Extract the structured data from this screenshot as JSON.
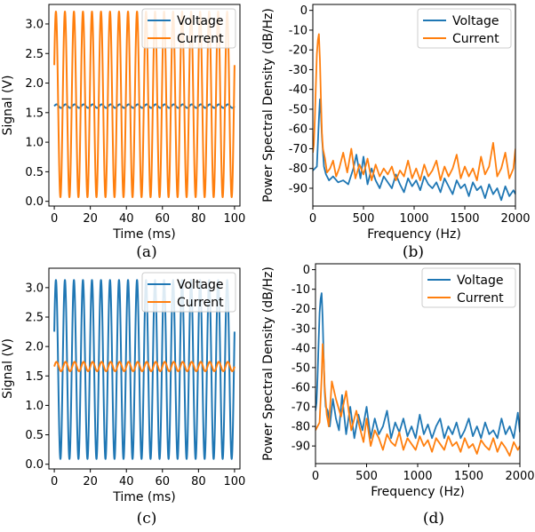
{
  "colors": {
    "voltage": "#1f77b4",
    "current": "#ff7f0e"
  },
  "chart_data": [
    {
      "id": "a",
      "type": "line",
      "caption": "(a)",
      "xlabel": "Time (ms)",
      "ylabel": "Signal (V)",
      "xlim": [
        -3,
        103
      ],
      "ylim": [
        -0.08,
        3.33
      ],
      "xticks": [
        0,
        20,
        40,
        60,
        80,
        100
      ],
      "xtick_labels": [
        "0",
        "20",
        "40",
        "60",
        "80",
        "100"
      ],
      "yticks": [
        0.0,
        0.5,
        1.0,
        1.5,
        2.0,
        2.5,
        3.0
      ],
      "ytick_labels": [
        "0.0",
        "0.5",
        "1.0",
        "1.5",
        "2.0",
        "2.5",
        "3.0"
      ],
      "legend_position": "top-right",
      "series": [
        {
          "name": "Voltage",
          "color_key": "voltage",
          "kind": "sine",
          "offset": 1.61,
          "amplitude": 0.03,
          "frequency_hz": 200,
          "phase_deg": 0
        },
        {
          "name": "Current",
          "color_key": "current",
          "kind": "sine",
          "offset": 1.64,
          "amplitude": 1.57,
          "frequency_hz": 200,
          "phase_deg": 25
        }
      ]
    },
    {
      "id": "b",
      "type": "line",
      "caption": "(b)",
      "xlabel": "Frequency (Hz)",
      "ylabel": "Power Spectral Density (dB/Hz)",
      "xlim": [
        0,
        2000
      ],
      "ylim": [
        -99,
        3
      ],
      "xticks": [
        0,
        500,
        1000,
        1500,
        2000
      ],
      "xtick_labels": [
        "0",
        "500",
        "1000",
        "1500",
        "2000"
      ],
      "yticks": [
        0,
        -10,
        -20,
        -30,
        -40,
        -50,
        -60,
        -70,
        -80,
        -90
      ],
      "ytick_labels": [
        "0",
        "-10",
        "-20",
        "-30",
        "-40",
        "-50",
        "-60",
        "-70",
        "-80",
        "-90"
      ],
      "legend_position": "top-right",
      "series": [
        {
          "name": "Voltage",
          "color_key": "voltage",
          "x": [
            0,
            20,
            40,
            60,
            70,
            80,
            90,
            110,
            130,
            160,
            200,
            250,
            300,
            350,
            400,
            430,
            470,
            500,
            540,
            580,
            620,
            660,
            700,
            740,
            780,
            820,
            860,
            900,
            940,
            980,
            1020,
            1060,
            1100,
            1140,
            1180,
            1220,
            1260,
            1300,
            1340,
            1380,
            1420,
            1460,
            1500,
            1540,
            1580,
            1620,
            1660,
            1700,
            1740,
            1780,
            1820,
            1860,
            1900,
            1940,
            1980,
            2000
          ],
          "y": [
            -81,
            -80,
            -79,
            -55,
            -45,
            -52,
            -64,
            -79,
            -83,
            -86,
            -84,
            -87,
            -86,
            -88,
            -80,
            -73,
            -85,
            -74,
            -88,
            -80,
            -86,
            -90,
            -84,
            -87,
            -90,
            -83,
            -88,
            -92,
            -85,
            -89,
            -86,
            -91,
            -84,
            -88,
            -90,
            -87,
            -92,
            -85,
            -89,
            -93,
            -86,
            -90,
            -88,
            -94,
            -87,
            -91,
            -89,
            -95,
            -88,
            -93,
            -90,
            -96,
            -89,
            -94,
            -91,
            -93
          ]
        },
        {
          "name": "Current",
          "color_key": "current",
          "x": [
            0,
            10,
            20,
            30,
            40,
            50,
            60,
            70,
            80,
            90,
            100,
            120,
            140,
            170,
            200,
            230,
            260,
            300,
            340,
            380,
            420,
            460,
            500,
            540,
            580,
            620,
            660,
            700,
            740,
            780,
            820,
            860,
            900,
            940,
            980,
            1020,
            1060,
            1100,
            1140,
            1180,
            1220,
            1260,
            1300,
            1340,
            1380,
            1420,
            1460,
            1500,
            1540,
            1580,
            1620,
            1660,
            1700,
            1740,
            1780,
            1820,
            1860,
            1900,
            1940,
            1980,
            2000
          ],
          "y": [
            -72,
            -68,
            -55,
            -38,
            -22,
            -15,
            -12,
            -25,
            -45,
            -62,
            -70,
            -75,
            -82,
            -80,
            -76,
            -84,
            -80,
            -72,
            -82,
            -70,
            -85,
            -78,
            -83,
            -75,
            -86,
            -78,
            -84,
            -80,
            -83,
            -79,
            -86,
            -81,
            -84,
            -76,
            -85,
            -80,
            -86,
            -78,
            -84,
            -81,
            -76,
            -86,
            -79,
            -84,
            -80,
            -73,
            -85,
            -79,
            -84,
            -80,
            -86,
            -74,
            -83,
            -79,
            -67,
            -84,
            -80,
            -72,
            -85,
            -80,
            -70
          ]
        }
      ]
    },
    {
      "id": "c",
      "type": "line",
      "caption": "(c)",
      "xlabel": "Time (ms)",
      "ylabel": "Signal (V)",
      "xlim": [
        -3,
        103
      ],
      "ylim": [
        -0.08,
        3.33
      ],
      "xticks": [
        0,
        20,
        40,
        60,
        80,
        100
      ],
      "xtick_labels": [
        "0",
        "20",
        "40",
        "60",
        "80",
        "100"
      ],
      "yticks": [
        0.0,
        0.5,
        1.0,
        1.5,
        2.0,
        2.5,
        3.0
      ],
      "ytick_labels": [
        "0.0",
        "0.5",
        "1.0",
        "1.5",
        "2.0",
        "2.5",
        "3.0"
      ],
      "legend_position": "top-right",
      "series": [
        {
          "name": "Voltage",
          "color_key": "voltage",
          "kind": "sine",
          "offset": 1.61,
          "amplitude": 1.52,
          "frequency_hz": 200,
          "phase_deg": 25
        },
        {
          "name": "Current",
          "color_key": "current",
          "kind": "sine",
          "offset": 1.66,
          "amplitude": 0.08,
          "frequency_hz": 200,
          "phase_deg": 0
        }
      ]
    },
    {
      "id": "d",
      "type": "line",
      "caption": "(d)",
      "xlabel": "Frequency (Hz)",
      "ylabel": "Power Spectral Density (dB/Hz)",
      "xlim": [
        0,
        2000
      ],
      "ylim": [
        -99,
        3
      ],
      "xticks": [
        0,
        500,
        1000,
        1500,
        2000
      ],
      "xtick_labels": [
        "0",
        "500",
        "1000",
        "1500",
        "2000"
      ],
      "yticks": [
        0,
        -10,
        -20,
        -30,
        -40,
        -50,
        -60,
        -70,
        -80,
        -90
      ],
      "ytick_labels": [
        "0",
        "-10",
        "-20",
        "-30",
        "-40",
        "-50",
        "-60",
        "-70",
        "-80",
        "-90"
      ],
      "legend_position": "top-right",
      "series": [
        {
          "name": "Voltage",
          "color_key": "voltage",
          "x": [
            0,
            10,
            20,
            30,
            40,
            50,
            60,
            70,
            80,
            90,
            100,
            120,
            140,
            170,
            200,
            230,
            260,
            300,
            340,
            380,
            420,
            460,
            500,
            540,
            580,
            620,
            660,
            700,
            740,
            780,
            820,
            860,
            900,
            940,
            980,
            1020,
            1060,
            1100,
            1140,
            1180,
            1220,
            1260,
            1300,
            1340,
            1380,
            1420,
            1460,
            1500,
            1540,
            1580,
            1620,
            1660,
            1700,
            1740,
            1780,
            1820,
            1860,
            1900,
            1940,
            1980,
            2000
          ],
          "y": [
            -72,
            -68,
            -55,
            -38,
            -22,
            -15,
            -12,
            -25,
            -45,
            -62,
            -70,
            -72,
            -80,
            -66,
            -76,
            -82,
            -64,
            -84,
            -70,
            -86,
            -74,
            -82,
            -70,
            -86,
            -76,
            -84,
            -80,
            -72,
            -86,
            -78,
            -83,
            -76,
            -85,
            -80,
            -86,
            -74,
            -84,
            -79,
            -86,
            -80,
            -76,
            -86,
            -80,
            -84,
            -78,
            -86,
            -82,
            -76,
            -85,
            -80,
            -86,
            -78,
            -84,
            -82,
            -86,
            -76,
            -84,
            -80,
            -86,
            -73,
            -83
          ]
        },
        {
          "name": "Current",
          "color_key": "current",
          "x": [
            0,
            20,
            40,
            60,
            70,
            80,
            90,
            110,
            130,
            160,
            200,
            250,
            300,
            350,
            400,
            430,
            470,
            500,
            540,
            580,
            620,
            660,
            700,
            740,
            780,
            820,
            860,
            900,
            940,
            980,
            1020,
            1060,
            1100,
            1140,
            1180,
            1220,
            1260,
            1300,
            1340,
            1380,
            1420,
            1460,
            1500,
            1540,
            1580,
            1620,
            1660,
            1700,
            1740,
            1780,
            1820,
            1860,
            1900,
            1940,
            1980,
            2000
          ],
          "y": [
            -82,
            -80,
            -78,
            -55,
            -38,
            -46,
            -60,
            -74,
            -80,
            -57,
            -66,
            -75,
            -62,
            -82,
            -72,
            -80,
            -88,
            -76,
            -90,
            -82,
            -86,
            -92,
            -84,
            -88,
            -90,
            -83,
            -92,
            -86,
            -89,
            -92,
            -85,
            -90,
            -87,
            -93,
            -86,
            -89,
            -92,
            -85,
            -90,
            -88,
            -93,
            -86,
            -91,
            -89,
            -94,
            -87,
            -90,
            -92,
            -86,
            -93,
            -88,
            -91,
            -95,
            -88,
            -92,
            -90
          ]
        }
      ]
    }
  ]
}
